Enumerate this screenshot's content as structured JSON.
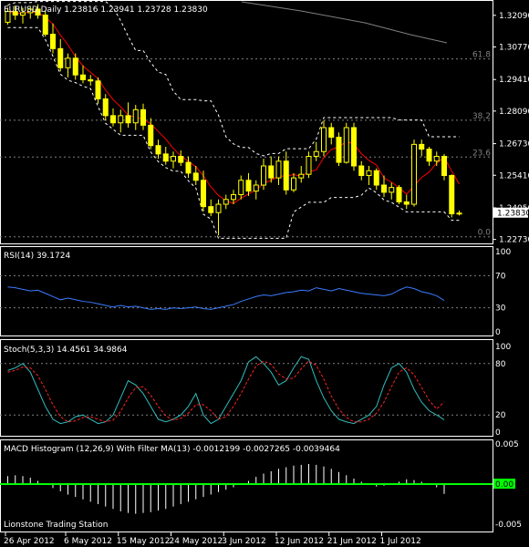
{
  "window": {
    "symbol_timeframe": "EURUSD,Daily",
    "ohlc": "1.23816 1.23941 1.23728 1.23830",
    "watermark": "Lionstone Trading Station"
  },
  "colors": {
    "background": "#000000",
    "candle": "#ffff00",
    "ma": "#ff0000",
    "bands": "#ffffff",
    "rsi": "#3a7cff",
    "stoch_main": "#33bbbb",
    "stoch_signal": "#ff2222",
    "macd_hist": "#ffffff",
    "macd_zero": "#00ff00",
    "long_ma": "#808080"
  },
  "chart_data": [
    {
      "type": "candlestick",
      "title": "EURUSD,Daily",
      "price_labels": [
        "1.32090",
        "1.30770",
        "1.29410",
        "1.28090",
        "1.26730",
        "1.25410",
        "1.24050",
        "1.22730"
      ],
      "price_levels": [
        1.3209,
        1.3077,
        1.2941,
        1.2809,
        1.2673,
        1.2541,
        1.2405,
        1.2273
      ],
      "ylim": [
        1.2264,
        1.3254
      ],
      "current_price_label": "1.23830",
      "current_price": 1.2383,
      "fib_labels": [
        "61.8",
        "38.2",
        "23.6",
        "0.0"
      ],
      "fib_prices": [
        1.3027,
        1.2771,
        1.2617,
        1.2284
      ],
      "date_labels": [
        "26 Apr 2012",
        "6 May 2012",
        "15 May 2012",
        "24 May 2012",
        "3 Jun 2012",
        "12 Jun 2012",
        "21 Jun 2012",
        "1 Jul 2012"
      ],
      "date_label_index": [
        0,
        8,
        15,
        22,
        29,
        36,
        43,
        50
      ],
      "candles": [
        [
          1.318,
          1.324,
          1.317,
          1.3225
        ],
        [
          1.3225,
          1.325,
          1.319,
          1.321
        ],
        [
          1.321,
          1.324,
          1.3175,
          1.322
        ],
        [
          1.322,
          1.3245,
          1.3195,
          1.3235
        ],
        [
          1.3235,
          1.3255,
          1.3195,
          1.321
        ],
        [
          1.321,
          1.323,
          1.312,
          1.313
        ],
        [
          1.313,
          1.3175,
          1.305,
          1.307
        ],
        [
          1.307,
          1.311,
          1.2975,
          1.299
        ],
        [
          1.299,
          1.305,
          1.295,
          1.303
        ],
        [
          1.303,
          1.305,
          1.294,
          1.296
        ],
        [
          1.296,
          1.3,
          1.2925,
          1.294
        ],
        [
          1.294,
          1.296,
          1.2915,
          1.2935
        ],
        [
          1.2935,
          1.295,
          1.284,
          1.286
        ],
        [
          1.286,
          1.288,
          1.277,
          1.279
        ],
        [
          1.279,
          1.282,
          1.2745,
          1.276
        ],
        [
          1.276,
          1.2815,
          1.272,
          1.279
        ],
        [
          1.279,
          1.2845,
          1.274,
          1.276
        ],
        [
          1.276,
          1.2835,
          1.273,
          1.2815
        ],
        [
          1.2815,
          1.284,
          1.273,
          1.275
        ],
        [
          1.275,
          1.278,
          1.265,
          1.2665
        ],
        [
          1.2665,
          1.269,
          1.261,
          1.263
        ],
        [
          1.263,
          1.266,
          1.2585,
          1.26
        ],
        [
          1.26,
          1.264,
          1.257,
          1.262
        ],
        [
          1.262,
          1.2645,
          1.258,
          1.2595
        ],
        [
          1.2595,
          1.262,
          1.253,
          1.255
        ],
        [
          1.255,
          1.258,
          1.25,
          1.252
        ],
        [
          1.252,
          1.256,
          1.239,
          1.241
        ],
        [
          1.241,
          1.244,
          1.237,
          1.2385
        ],
        [
          1.2385,
          1.244,
          1.229,
          1.242
        ],
        [
          1.242,
          1.246,
          1.24,
          1.244
        ],
        [
          1.244,
          1.248,
          1.242,
          1.246
        ],
        [
          1.246,
          1.254,
          1.244,
          1.252
        ],
        [
          1.252,
          1.255,
          1.2455,
          1.2475
        ],
        [
          1.2475,
          1.252,
          1.244,
          1.25
        ],
        [
          1.25,
          1.261,
          1.248,
          1.258
        ],
        [
          1.258,
          1.262,
          1.251,
          1.253
        ],
        [
          1.253,
          1.262,
          1.25,
          1.26
        ],
        [
          1.26,
          1.264,
          1.246,
          1.248
        ],
        [
          1.248,
          1.255,
          1.247,
          1.253
        ],
        [
          1.253,
          1.258,
          1.251,
          1.2545
        ],
        [
          1.2545,
          1.264,
          1.253,
          1.262
        ],
        [
          1.262,
          1.268,
          1.26,
          1.264
        ],
        [
          1.264,
          1.277,
          1.262,
          1.274
        ],
        [
          1.274,
          1.276,
          1.267,
          1.27
        ],
        [
          1.27,
          1.272,
          1.258,
          1.2595
        ],
        [
          1.2595,
          1.276,
          1.259,
          1.274
        ],
        [
          1.274,
          1.276,
          1.256,
          1.258
        ],
        [
          1.258,
          1.26,
          1.252,
          1.254
        ],
        [
          1.254,
          1.258,
          1.25,
          1.256
        ],
        [
          1.256,
          1.257,
          1.248,
          1.25
        ],
        [
          1.25,
          1.254,
          1.245,
          1.247
        ],
        [
          1.247,
          1.251,
          1.244,
          1.249
        ],
        [
          1.249,
          1.25,
          1.242,
          1.243
        ],
        [
          1.243,
          1.246,
          1.24,
          1.242
        ],
        [
          1.242,
          1.269,
          1.241,
          1.267
        ],
        [
          1.267,
          1.269,
          1.262,
          1.265
        ],
        [
          1.265,
          1.266,
          1.258,
          1.26
        ],
        [
          1.26,
          1.264,
          1.258,
          1.262
        ],
        [
          1.262,
          1.263,
          1.252,
          1.254
        ],
        [
          1.254,
          1.2545,
          1.2365,
          1.238
        ],
        [
          1.238,
          1.2394,
          1.2373,
          1.2383
        ]
      ]
    },
    {
      "type": "line",
      "title": "RSI(14) 39.1724",
      "tick_labels": [
        "100",
        "70",
        "30",
        "0"
      ],
      "ylim": [
        0,
        100
      ],
      "levels": [
        70,
        30
      ],
      "values": [
        56,
        55,
        53,
        51,
        52,
        48,
        44,
        40,
        42,
        40,
        38,
        37,
        35,
        33,
        31,
        33,
        31,
        32,
        30,
        28,
        29,
        28,
        30,
        29,
        30,
        31,
        29,
        28,
        30,
        32,
        34,
        38,
        41,
        44,
        46,
        45,
        47,
        49,
        50,
        52,
        51,
        55,
        53,
        51,
        54,
        52,
        50,
        48,
        47,
        46,
        45,
        47,
        52,
        56,
        54,
        50,
        48,
        45,
        39.1724
      ]
    },
    {
      "type": "line",
      "title": "Stoch(5,3,3) 14.4561 34.9864",
      "tick_labels": [
        "100",
        "80",
        "20",
        "0"
      ],
      "ylim": [
        0,
        100
      ],
      "levels": [
        80,
        20
      ],
      "series": [
        {
          "values": [
            72,
            75,
            80,
            70,
            50,
            30,
            15,
            10,
            12,
            18,
            20,
            15,
            10,
            12,
            20,
            40,
            60,
            55,
            45,
            30,
            15,
            12,
            15,
            20,
            30,
            45,
            20,
            10,
            15,
            30,
            45,
            60,
            82,
            88,
            80,
            70,
            55,
            60,
            75,
            88,
            85,
            60,
            40,
            25,
            15,
            12,
            10,
            15,
            20,
            30,
            55,
            75,
            80,
            70,
            50,
            35,
            25,
            20,
            14.4561
          ]
        },
        {
          "values": [
            70,
            72,
            76,
            75,
            66,
            50,
            32,
            18,
            12,
            13,
            17,
            18,
            15,
            12,
            14,
            24,
            40,
            52,
            53,
            43,
            30,
            19,
            14,
            16,
            22,
            32,
            32,
            25,
            15,
            18,
            30,
            45,
            62,
            77,
            83,
            79,
            68,
            62,
            63,
            74,
            83,
            78,
            62,
            42,
            27,
            17,
            12,
            12,
            15,
            22,
            35,
            53,
            70,
            75,
            67,
            52,
            37,
            27,
            34.9864
          ]
        }
      ]
    },
    {
      "type": "bar",
      "title": "MACD Histogram (12,26,9) With Filter MA(13) -0.0012199 -0.0027265 -0.0039464",
      "tick_labels": [
        "0.005",
        "0.00",
        "-0.005"
      ],
      "ylim": [
        -0.005,
        0.005
      ],
      "values": [
        0.001,
        0.0011,
        0.001,
        0.0008,
        0.0004,
        -0.0001,
        -0.0005,
        -0.0009,
        -0.0013,
        -0.0016,
        -0.0019,
        -0.0022,
        -0.0025,
        -0.0028,
        -0.0031,
        -0.0034,
        -0.0036,
        -0.0037,
        -0.0036,
        -0.0035,
        -0.0033,
        -0.0031,
        -0.0028,
        -0.0025,
        -0.0022,
        -0.0019,
        -0.0016,
        -0.0013,
        -0.001,
        -0.0007,
        -0.0004,
        0.0,
        0.0004,
        0.0009,
        0.0013,
        0.0016,
        0.0019,
        0.0021,
        0.0023,
        0.0024,
        0.0025,
        0.0024,
        0.0022,
        0.0019,
        0.0015,
        0.0011,
        0.0007,
        0.0003,
        -0.0001,
        -0.0003,
        -0.0002,
        0.0,
        0.0003,
        0.0006,
        0.0005,
        0.0003,
        0.0001,
        -0.0004,
        -0.0012199
      ]
    }
  ]
}
